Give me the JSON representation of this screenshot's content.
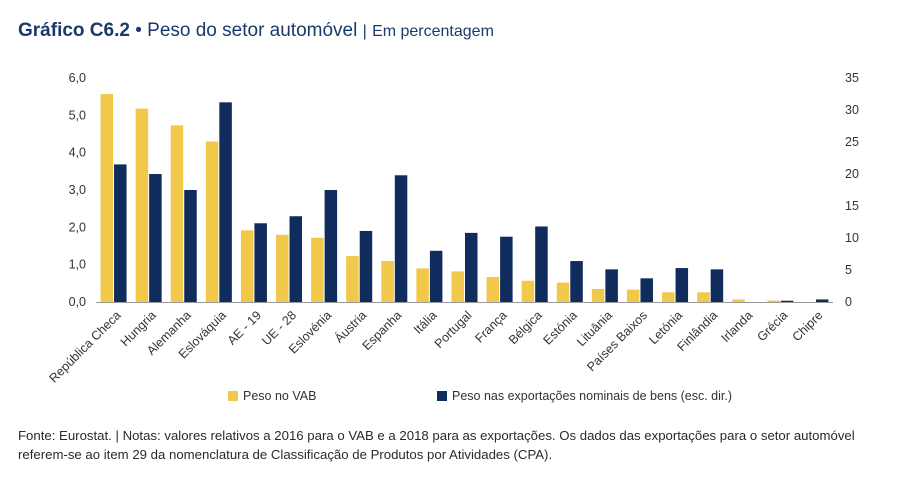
{
  "title": {
    "label": "Gráfico C6.2",
    "bullet": "•",
    "text": "Peso do setor automóvel",
    "separator": "|",
    "subtitle": "Em percentagem"
  },
  "chart_data": {
    "type": "bar",
    "categories": [
      "República Checa",
      "Hungria",
      "Alemanha",
      "Eslováquia",
      "AE - 19",
      "UE - 28",
      "Eslovénia",
      "Áustria",
      "Espanha",
      "Itália",
      "Portugal",
      "França",
      "Bélgica",
      "Estónia",
      "Lituânia",
      "Países Baixos",
      "Letónia",
      "Finlândia",
      "Irlanda",
      "Grécia",
      "Chipre"
    ],
    "series": [
      {
        "name": "Peso no VAB",
        "axis": "left",
        "color": "#f2c84b",
        "values": [
          5.57,
          5.18,
          4.73,
          4.3,
          1.92,
          1.8,
          1.72,
          1.23,
          1.1,
          0.9,
          0.82,
          0.67,
          0.57,
          0.52,
          0.35,
          0.33,
          0.26,
          0.26,
          0.07,
          0.04,
          0.0
        ]
      },
      {
        "name": "Peso nas exportações nominais de bens (esc. dir.)",
        "axis": "right",
        "color": "#0f2c5c",
        "values": [
          21.5,
          20.0,
          17.5,
          31.2,
          12.3,
          13.4,
          17.5,
          11.1,
          19.8,
          8.0,
          10.8,
          10.2,
          11.8,
          6.4,
          5.1,
          3.7,
          5.3,
          5.1,
          0.0,
          0.2,
          0.4
        ]
      }
    ],
    "y_left": {
      "min": 0,
      "max": 6,
      "ticks": [
        "0,0",
        "1,0",
        "2,0",
        "3,0",
        "4,0",
        "5,0",
        "6,0"
      ]
    },
    "y_right": {
      "min": 0,
      "max": 35,
      "ticks": [
        "0",
        "5",
        "10",
        "15",
        "20",
        "25",
        "30",
        "35"
      ]
    },
    "legend_position": "bottom"
  },
  "footnote": {
    "line1": "Fonte: Eurostat.  |  Notas: valores relativos a 2016 para o VAB e a 2018 para as exportações. Os dados das exportações para o setor automóvel",
    "line2": "referem-se ao item 29 da nomenclatura de Classificação de Produtos por Atividades (CPA)."
  }
}
